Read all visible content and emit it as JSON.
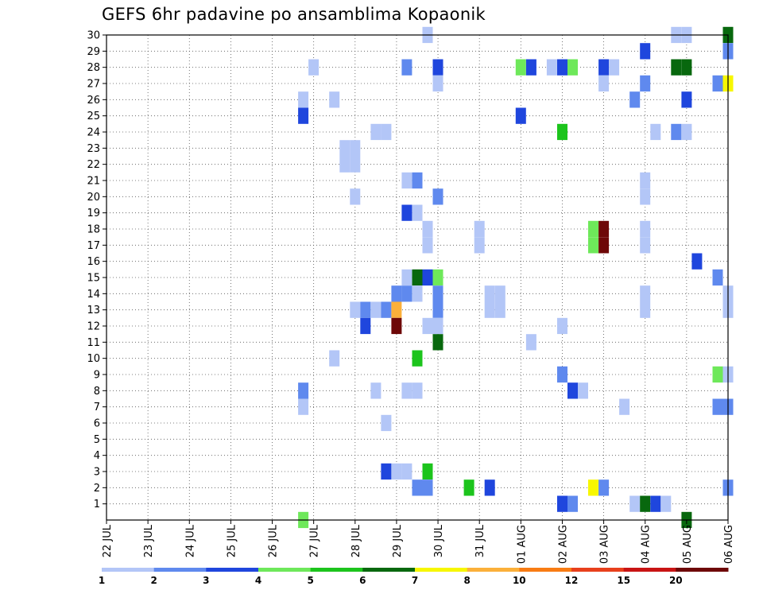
{
  "chart_data": {
    "type": "heatmap",
    "title": "GEFS 6hr padavine po ansamblima Kopaonik",
    "y_ticks": [
      "1",
      "2",
      "3",
      "4",
      "5",
      "6",
      "7",
      "8",
      "9",
      "10",
      "11",
      "12",
      "13",
      "14",
      "15",
      "16",
      "17",
      "18",
      "19",
      "20",
      "21",
      "22",
      "23",
      "24",
      "25",
      "26",
      "27",
      "28",
      "29",
      "30"
    ],
    "x_ticks": [
      "22 JUL",
      "23 JUL",
      "24 JUL",
      "25 JUL",
      "26 JUL",
      "27 JUL",
      "28 JUL",
      "29 JUL",
      "30 JUL",
      "31 JUL",
      "01 AUG",
      "02 AUG",
      "03 AUG",
      "04 AUG",
      "05 AUG",
      "06 AUG"
    ],
    "grid": true,
    "colorbar": {
      "labels": [
        "1",
        "2",
        "3",
        "4",
        "5",
        "6",
        "7",
        "8",
        "10",
        "12",
        "15",
        "20"
      ],
      "colors": [
        "#b3c6f7",
        "#5f89ee",
        "#1f46dd",
        "#6ee85a",
        "#1cc41c",
        "#08680e",
        "#f7f700",
        "#fbb03a",
        "#f87c14",
        "#e8401c",
        "#c81414",
        "#6e0808"
      ]
    },
    "cells": [
      {
        "m": 30,
        "t": "29 JUL 18",
        "c": 0
      },
      {
        "m": 30,
        "t": "04 AUG 18",
        "c": 0
      },
      {
        "m": 30,
        "t": "05 AUG 00",
        "c": 0
      },
      {
        "m": 30,
        "t": "06 AUG 00",
        "c": 5
      },
      {
        "m": 29,
        "t": "04 AUG 00",
        "c": 2
      },
      {
        "m": 29,
        "t": "06 AUG 00",
        "c": 1
      },
      {
        "m": 28,
        "t": "27 JUL 00",
        "c": 0
      },
      {
        "m": 28,
        "t": "29 JUL 06",
        "c": 1
      },
      {
        "m": 28,
        "t": "30 JUL 00",
        "c": 2
      },
      {
        "m": 28,
        "t": "01 AUG 00",
        "c": 3
      },
      {
        "m": 28,
        "t": "01 AUG 06",
        "c": 2
      },
      {
        "m": 28,
        "t": "01 AUG 18",
        "c": 0
      },
      {
        "m": 28,
        "t": "02 AUG 00",
        "c": 2
      },
      {
        "m": 28,
        "t": "02 AUG 06",
        "c": 3
      },
      {
        "m": 28,
        "t": "03 AUG 00",
        "c": 2
      },
      {
        "m": 28,
        "t": "03 AUG 06",
        "c": 0
      },
      {
        "m": 28,
        "t": "04 AUG 18",
        "c": 5
      },
      {
        "m": 28,
        "t": "05 AUG 00",
        "c": 5
      },
      {
        "m": 27,
        "t": "30 JUL 00",
        "c": 0
      },
      {
        "m": 27,
        "t": "03 AUG 00",
        "c": 0
      },
      {
        "m": 27,
        "t": "04 AUG 00",
        "c": 1
      },
      {
        "m": 27,
        "t": "05 AUG 18",
        "c": 1
      },
      {
        "m": 27,
        "t": "06 AUG 00",
        "c": 6
      },
      {
        "m": 26,
        "t": "26 JUL 18",
        "c": 0
      },
      {
        "m": 26,
        "t": "27 JUL 12",
        "c": 0
      },
      {
        "m": 26,
        "t": "03 AUG 18",
        "c": 1
      },
      {
        "m": 26,
        "t": "05 AUG 00",
        "c": 2
      },
      {
        "m": 25,
        "t": "26 JUL 18",
        "c": 2
      },
      {
        "m": 25,
        "t": "01 AUG 00",
        "c": 2
      },
      {
        "m": 24,
        "t": "28 JUL 12",
        "c": 0
      },
      {
        "m": 24,
        "t": "28 JUL 18",
        "c": 0
      },
      {
        "m": 24,
        "t": "02 AUG 00",
        "c": 4
      },
      {
        "m": 24,
        "t": "04 AUG 06",
        "c": 0
      },
      {
        "m": 24,
        "t": "04 AUG 18",
        "c": 1
      },
      {
        "m": 24,
        "t": "05 AUG 00",
        "c": 0
      },
      {
        "m": 23,
        "t": "27 JUL 18",
        "c": 0
      },
      {
        "m": 23,
        "t": "28 JUL 00",
        "c": 0
      },
      {
        "m": 22,
        "t": "27 JUL 18",
        "c": 0
      },
      {
        "m": 22,
        "t": "28 JUL 00",
        "c": 0
      },
      {
        "m": 21,
        "t": "29 JUL 06",
        "c": 0
      },
      {
        "m": 21,
        "t": "29 JUL 12",
        "c": 1
      },
      {
        "m": 21,
        "t": "04 AUG 00",
        "c": 0
      },
      {
        "m": 20,
        "t": "28 JUL 00",
        "c": 0
      },
      {
        "m": 20,
        "t": "30 JUL 00",
        "c": 1
      },
      {
        "m": 20,
        "t": "04 AUG 00",
        "c": 0
      },
      {
        "m": 19,
        "t": "29 JUL 06",
        "c": 2
      },
      {
        "m": 19,
        "t": "29 JUL 12",
        "c": 0
      },
      {
        "m": 18,
        "t": "29 JUL 18",
        "c": 0
      },
      {
        "m": 18,
        "t": "31 JUL 00",
        "c": 0
      },
      {
        "m": 18,
        "t": "02 AUG 18",
        "c": 3
      },
      {
        "m": 18,
        "t": "03 AUG 00",
        "c": 11
      },
      {
        "m": 18,
        "t": "04 AUG 00",
        "c": 0
      },
      {
        "m": 17,
        "t": "29 JUL 18",
        "c": 0
      },
      {
        "m": 17,
        "t": "31 JUL 00",
        "c": 0
      },
      {
        "m": 17,
        "t": "02 AUG 18",
        "c": 3
      },
      {
        "m": 17,
        "t": "03 AUG 00",
        "c": 11
      },
      {
        "m": 17,
        "t": "04 AUG 00",
        "c": 0
      },
      {
        "m": 16,
        "t": "05 AUG 06",
        "c": 2
      },
      {
        "m": 15,
        "t": "29 JUL 06",
        "c": 0
      },
      {
        "m": 15,
        "t": "29 JUL 12",
        "c": 5
      },
      {
        "m": 15,
        "t": "29 JUL 18",
        "c": 2
      },
      {
        "m": 15,
        "t": "30 JUL 00",
        "c": 3
      },
      {
        "m": 15,
        "t": "05 AUG 18",
        "c": 1
      },
      {
        "m": 14,
        "t": "29 JUL 00",
        "c": 1
      },
      {
        "m": 14,
        "t": "29 JUL 06",
        "c": 1
      },
      {
        "m": 14,
        "t": "29 JUL 12",
        "c": 0
      },
      {
        "m": 14,
        "t": "30 JUL 00",
        "c": 1
      },
      {
        "m": 14,
        "t": "31 JUL 06",
        "c": 0
      },
      {
        "m": 14,
        "t": "31 JUL 12",
        "c": 0
      },
      {
        "m": 14,
        "t": "04 AUG 00",
        "c": 0
      },
      {
        "m": 14,
        "t": "06 AUG 00",
        "c": 0
      },
      {
        "m": 13,
        "t": "28 JUL 00",
        "c": 0
      },
      {
        "m": 13,
        "t": "28 JUL 06",
        "c": 1
      },
      {
        "m": 13,
        "t": "28 JUL 12",
        "c": 0
      },
      {
        "m": 13,
        "t": "28 JUL 18",
        "c": 1
      },
      {
        "m": 13,
        "t": "29 JUL 00",
        "c": 7
      },
      {
        "m": 13,
        "t": "30 JUL 00",
        "c": 1
      },
      {
        "m": 13,
        "t": "31 JUL 06",
        "c": 0
      },
      {
        "m": 13,
        "t": "31 JUL 12",
        "c": 0
      },
      {
        "m": 13,
        "t": "04 AUG 00",
        "c": 0
      },
      {
        "m": 13,
        "t": "06 AUG 00",
        "c": 0
      },
      {
        "m": 12,
        "t": "28 JUL 06",
        "c": 2
      },
      {
        "m": 12,
        "t": "29 JUL 00",
        "c": 11
      },
      {
        "m": 12,
        "t": "29 JUL 18",
        "c": 0
      },
      {
        "m": 12,
        "t": "30 JUL 00",
        "c": 0
      },
      {
        "m": 12,
        "t": "02 AUG 00",
        "c": 0
      },
      {
        "m": 11,
        "t": "30 JUL 00",
        "c": 5
      },
      {
        "m": 11,
        "t": "01 AUG 06",
        "c": 0
      },
      {
        "m": 10,
        "t": "27 JUL 12",
        "c": 0
      },
      {
        "m": 10,
        "t": "29 JUL 12",
        "c": 4
      },
      {
        "m": 9,
        "t": "02 AUG 00",
        "c": 1
      },
      {
        "m": 9,
        "t": "05 AUG 18",
        "c": 3
      },
      {
        "m": 9,
        "t": "06 AUG 00",
        "c": 0
      },
      {
        "m": 8,
        "t": "26 JUL 18",
        "c": 1
      },
      {
        "m": 8,
        "t": "28 JUL 12",
        "c": 0
      },
      {
        "m": 8,
        "t": "29 JUL 06",
        "c": 0
      },
      {
        "m": 8,
        "t": "29 JUL 12",
        "c": 0
      },
      {
        "m": 8,
        "t": "02 AUG 06",
        "c": 2
      },
      {
        "m": 8,
        "t": "02 AUG 12",
        "c": 0
      },
      {
        "m": 7,
        "t": "26 JUL 18",
        "c": 0
      },
      {
        "m": 7,
        "t": "03 AUG 12",
        "c": 0
      },
      {
        "m": 7,
        "t": "05 AUG 18",
        "c": 1
      },
      {
        "m": 7,
        "t": "06 AUG 00",
        "c": 1
      },
      {
        "m": 6,
        "t": "28 JUL 18",
        "c": 0
      },
      {
        "m": 3,
        "t": "28 JUL 18",
        "c": 2
      },
      {
        "m": 3,
        "t": "29 JUL 00",
        "c": 0
      },
      {
        "m": 3,
        "t": "29 JUL 06",
        "c": 0
      },
      {
        "m": 3,
        "t": "29 JUL 18",
        "c": 4
      },
      {
        "m": 2,
        "t": "29 JUL 12",
        "c": 1
      },
      {
        "m": 2,
        "t": "29 JUL 18",
        "c": 1
      },
      {
        "m": 2,
        "t": "30 JUL 18",
        "c": 4
      },
      {
        "m": 2,
        "t": "31 JUL 06",
        "c": 2
      },
      {
        "m": 2,
        "t": "02 AUG 18",
        "c": 6
      },
      {
        "m": 2,
        "t": "03 AUG 00",
        "c": 1
      },
      {
        "m": 2,
        "t": "06 AUG 00",
        "c": 1
      },
      {
        "m": 1,
        "t": "02 AUG 00",
        "c": 2
      },
      {
        "m": 1,
        "t": "02 AUG 06",
        "c": 1
      },
      {
        "m": 1,
        "t": "03 AUG 18",
        "c": 0
      },
      {
        "m": 1,
        "t": "04 AUG 00",
        "c": 5
      },
      {
        "m": 1,
        "t": "04 AUG 06",
        "c": 2
      },
      {
        "m": 1,
        "t": "04 AUG 12",
        "c": 0
      },
      {
        "m": 0,
        "t": "26 JUL 18",
        "c": 3
      },
      {
        "m": 0,
        "t": "05 AUG 00",
        "c": 5
      }
    ]
  }
}
